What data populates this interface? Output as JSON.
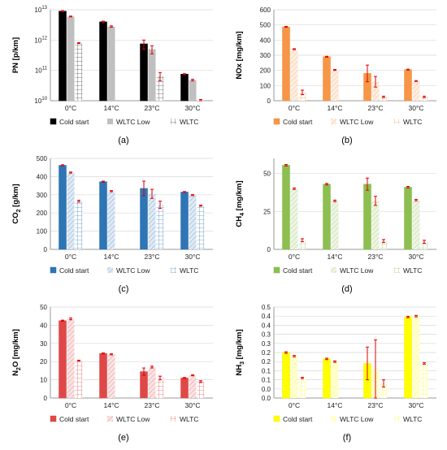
{
  "chart_data": [
    {
      "panel": "a",
      "caption": "(a)",
      "type": "bar",
      "ylabel_parts": [
        "PN [p/km]"
      ],
      "yscale": "log",
      "ylim": [
        10000000000.0,
        10000000000000.0
      ],
      "yticks": [
        10000000000.0,
        100000000000.0,
        1000000000000.0,
        10000000000000.0
      ],
      "ytick_labels": [
        "10",
        "10",
        "10",
        "10"
      ],
      "ytick_exponents": [
        "10",
        "11",
        "12",
        "13"
      ],
      "categories": [
        "0°C",
        "14°C",
        "23°C",
        "30°C"
      ],
      "color": "#000000",
      "series": [
        {
          "name": "Cold start",
          "style": "solid",
          "values": [
            9000000000000.0,
            4000000000000.0,
            750000000000.0,
            75000000000.0
          ],
          "errors": [
            300000000000.0,
            200000000000.0,
            250000000000.0,
            3000000000.0
          ]
        },
        {
          "name": "WLTC Low",
          "style": "light",
          "values": [
            6000000000000.0,
            2800000000000.0,
            500000000000.0,
            48000000000.0
          ],
          "errors": [
            200000000000.0,
            150000000000.0,
            150000000000.0,
            3000000000.0
          ]
        },
        {
          "name": "WLTC",
          "style": "grid",
          "values": [
            800000000000.0,
            null,
            65000000000.0,
            10500000000.0
          ],
          "errors": [
            30000000000.0,
            null,
            20000000000.0,
            500000000.0
          ]
        }
      ]
    },
    {
      "panel": "b",
      "caption": "(b)",
      "type": "bar",
      "ylabel_parts": [
        "NOx [mg/km]"
      ],
      "ylim": [
        0,
        600
      ],
      "yticks": [
        0,
        100,
        200,
        300,
        400,
        500,
        600
      ],
      "categories": [
        "0°C",
        "14°C",
        "23°C",
        "30°C"
      ],
      "color": "#f79646",
      "series": [
        {
          "name": "Cold start",
          "style": "solid",
          "values": [
            487,
            290,
            180,
            205
          ],
          "errors": [
            3,
            3,
            55,
            3
          ]
        },
        {
          "name": "WLTC Low",
          "style": "light",
          "values": [
            340,
            203,
            125,
            130
          ],
          "errors": [
            3,
            3,
            35,
            3
          ]
        },
        {
          "name": "WLTC",
          "style": "grid",
          "values": [
            55,
            null,
            25,
            25
          ],
          "errors": [
            15,
            null,
            5,
            5
          ]
        }
      ]
    },
    {
      "panel": "c",
      "caption": "(c)",
      "type": "bar",
      "ylabel_parts": [
        "CO",
        "2",
        " [g/km]"
      ],
      "ylim": [
        0,
        500
      ],
      "yticks": [
        0,
        100,
        200,
        300,
        400,
        500
      ],
      "categories": [
        "0°C",
        "14°C",
        "23°C",
        "30°C"
      ],
      "color": "#2e75b6",
      "series": [
        {
          "name": "Cold start",
          "style": "solid",
          "values": [
            462,
            372,
            335,
            315
          ],
          "errors": [
            3,
            3,
            40,
            3
          ]
        },
        {
          "name": "WLTC Low",
          "style": "light",
          "values": [
            422,
            320,
            305,
            298
          ],
          "errors": [
            3,
            3,
            25,
            3
          ]
        },
        {
          "name": "WLTC",
          "style": "grid",
          "values": [
            265,
            null,
            245,
            240
          ],
          "errors": [
            5,
            null,
            20,
            3
          ]
        }
      ]
    },
    {
      "panel": "d",
      "caption": "(d)",
      "type": "bar",
      "ylabel_parts": [
        "CH",
        "4",
        " [mg/km]"
      ],
      "ylim": [
        0,
        60
      ],
      "yticks": [
        0,
        25,
        50
      ],
      "categories": [
        "0°C",
        "14°C",
        "23°C",
        "30°C"
      ],
      "color": "#8cbf4f",
      "series": [
        {
          "name": "Cold start",
          "style": "solid",
          "values": [
            55.5,
            43,
            43,
            41
          ],
          "errors": [
            0.5,
            0.5,
            4,
            0.5
          ]
        },
        {
          "name": "WLTC Low",
          "style": "light",
          "values": [
            40,
            32,
            32,
            32.5
          ],
          "errors": [
            0.5,
            0.5,
            3,
            0.5
          ]
        },
        {
          "name": "WLTC",
          "style": "grid",
          "values": [
            6,
            null,
            5.5,
            5
          ],
          "errors": [
            1,
            null,
            1,
            1
          ]
        }
      ]
    },
    {
      "panel": "e",
      "caption": "(e)",
      "type": "bar",
      "ylabel_parts": [
        "N",
        "2",
        "O [mg/km]"
      ],
      "ylim": [
        0,
        50
      ],
      "yticks": [
        0,
        10,
        20,
        30,
        40,
        50
      ],
      "categories": [
        "0°C",
        "14°C",
        "23°C",
        "30°C"
      ],
      "color": "#e04848",
      "series": [
        {
          "name": "Cold start",
          "style": "solid",
          "values": [
            42.5,
            24.5,
            14.5,
            11
          ],
          "errors": [
            0.3,
            0.3,
            2,
            0.3
          ]
        },
        {
          "name": "WLTC Low",
          "style": "light",
          "values": [
            43.5,
            24,
            17,
            12.5
          ],
          "errors": [
            0.5,
            0.3,
            0.5,
            0.3
          ]
        },
        {
          "name": "WLTC",
          "style": "grid",
          "values": [
            20.5,
            null,
            11,
            9
          ],
          "errors": [
            0.3,
            null,
            1,
            0.5
          ]
        }
      ]
    },
    {
      "panel": "f",
      "caption": "(f)",
      "type": "bar",
      "ylabel_parts": [
        "NH",
        "3",
        " [mg/km]"
      ],
      "ylim": [
        0,
        0.5
      ],
      "yticks": [
        0,
        0.05,
        0.1,
        0.15,
        0.2,
        0.25,
        0.3,
        0.35,
        0.4,
        0.45,
        0.5
      ],
      "ytick_labels": [
        "0.0",
        "0.0",
        "0.1",
        "0.1",
        "0.2",
        "0.2",
        "0.3",
        "0.3",
        "0.4",
        "0.4",
        "0.5"
      ],
      "categories": [
        "0°C",
        "14°C",
        "23°C",
        "30°C"
      ],
      "color": "#ffff00",
      "series": [
        {
          "name": "Cold start",
          "style": "solid",
          "values": [
            0.25,
            0.215,
            0.19,
            0.445
          ],
          "errors": [
            0.004,
            0.004,
            0.09,
            0.004
          ]
        },
        {
          "name": "WLTC Low",
          "style": "light",
          "values": [
            0.23,
            0.2,
            0.16,
            0.45
          ],
          "errors": [
            0.004,
            0.004,
            0.16,
            0.004
          ]
        },
        {
          "name": "WLTC",
          "style": "grid",
          "values": [
            0.11,
            null,
            0.08,
            0.19
          ],
          "errors": [
            0.004,
            null,
            0.02,
            0.004
          ]
        }
      ]
    }
  ]
}
